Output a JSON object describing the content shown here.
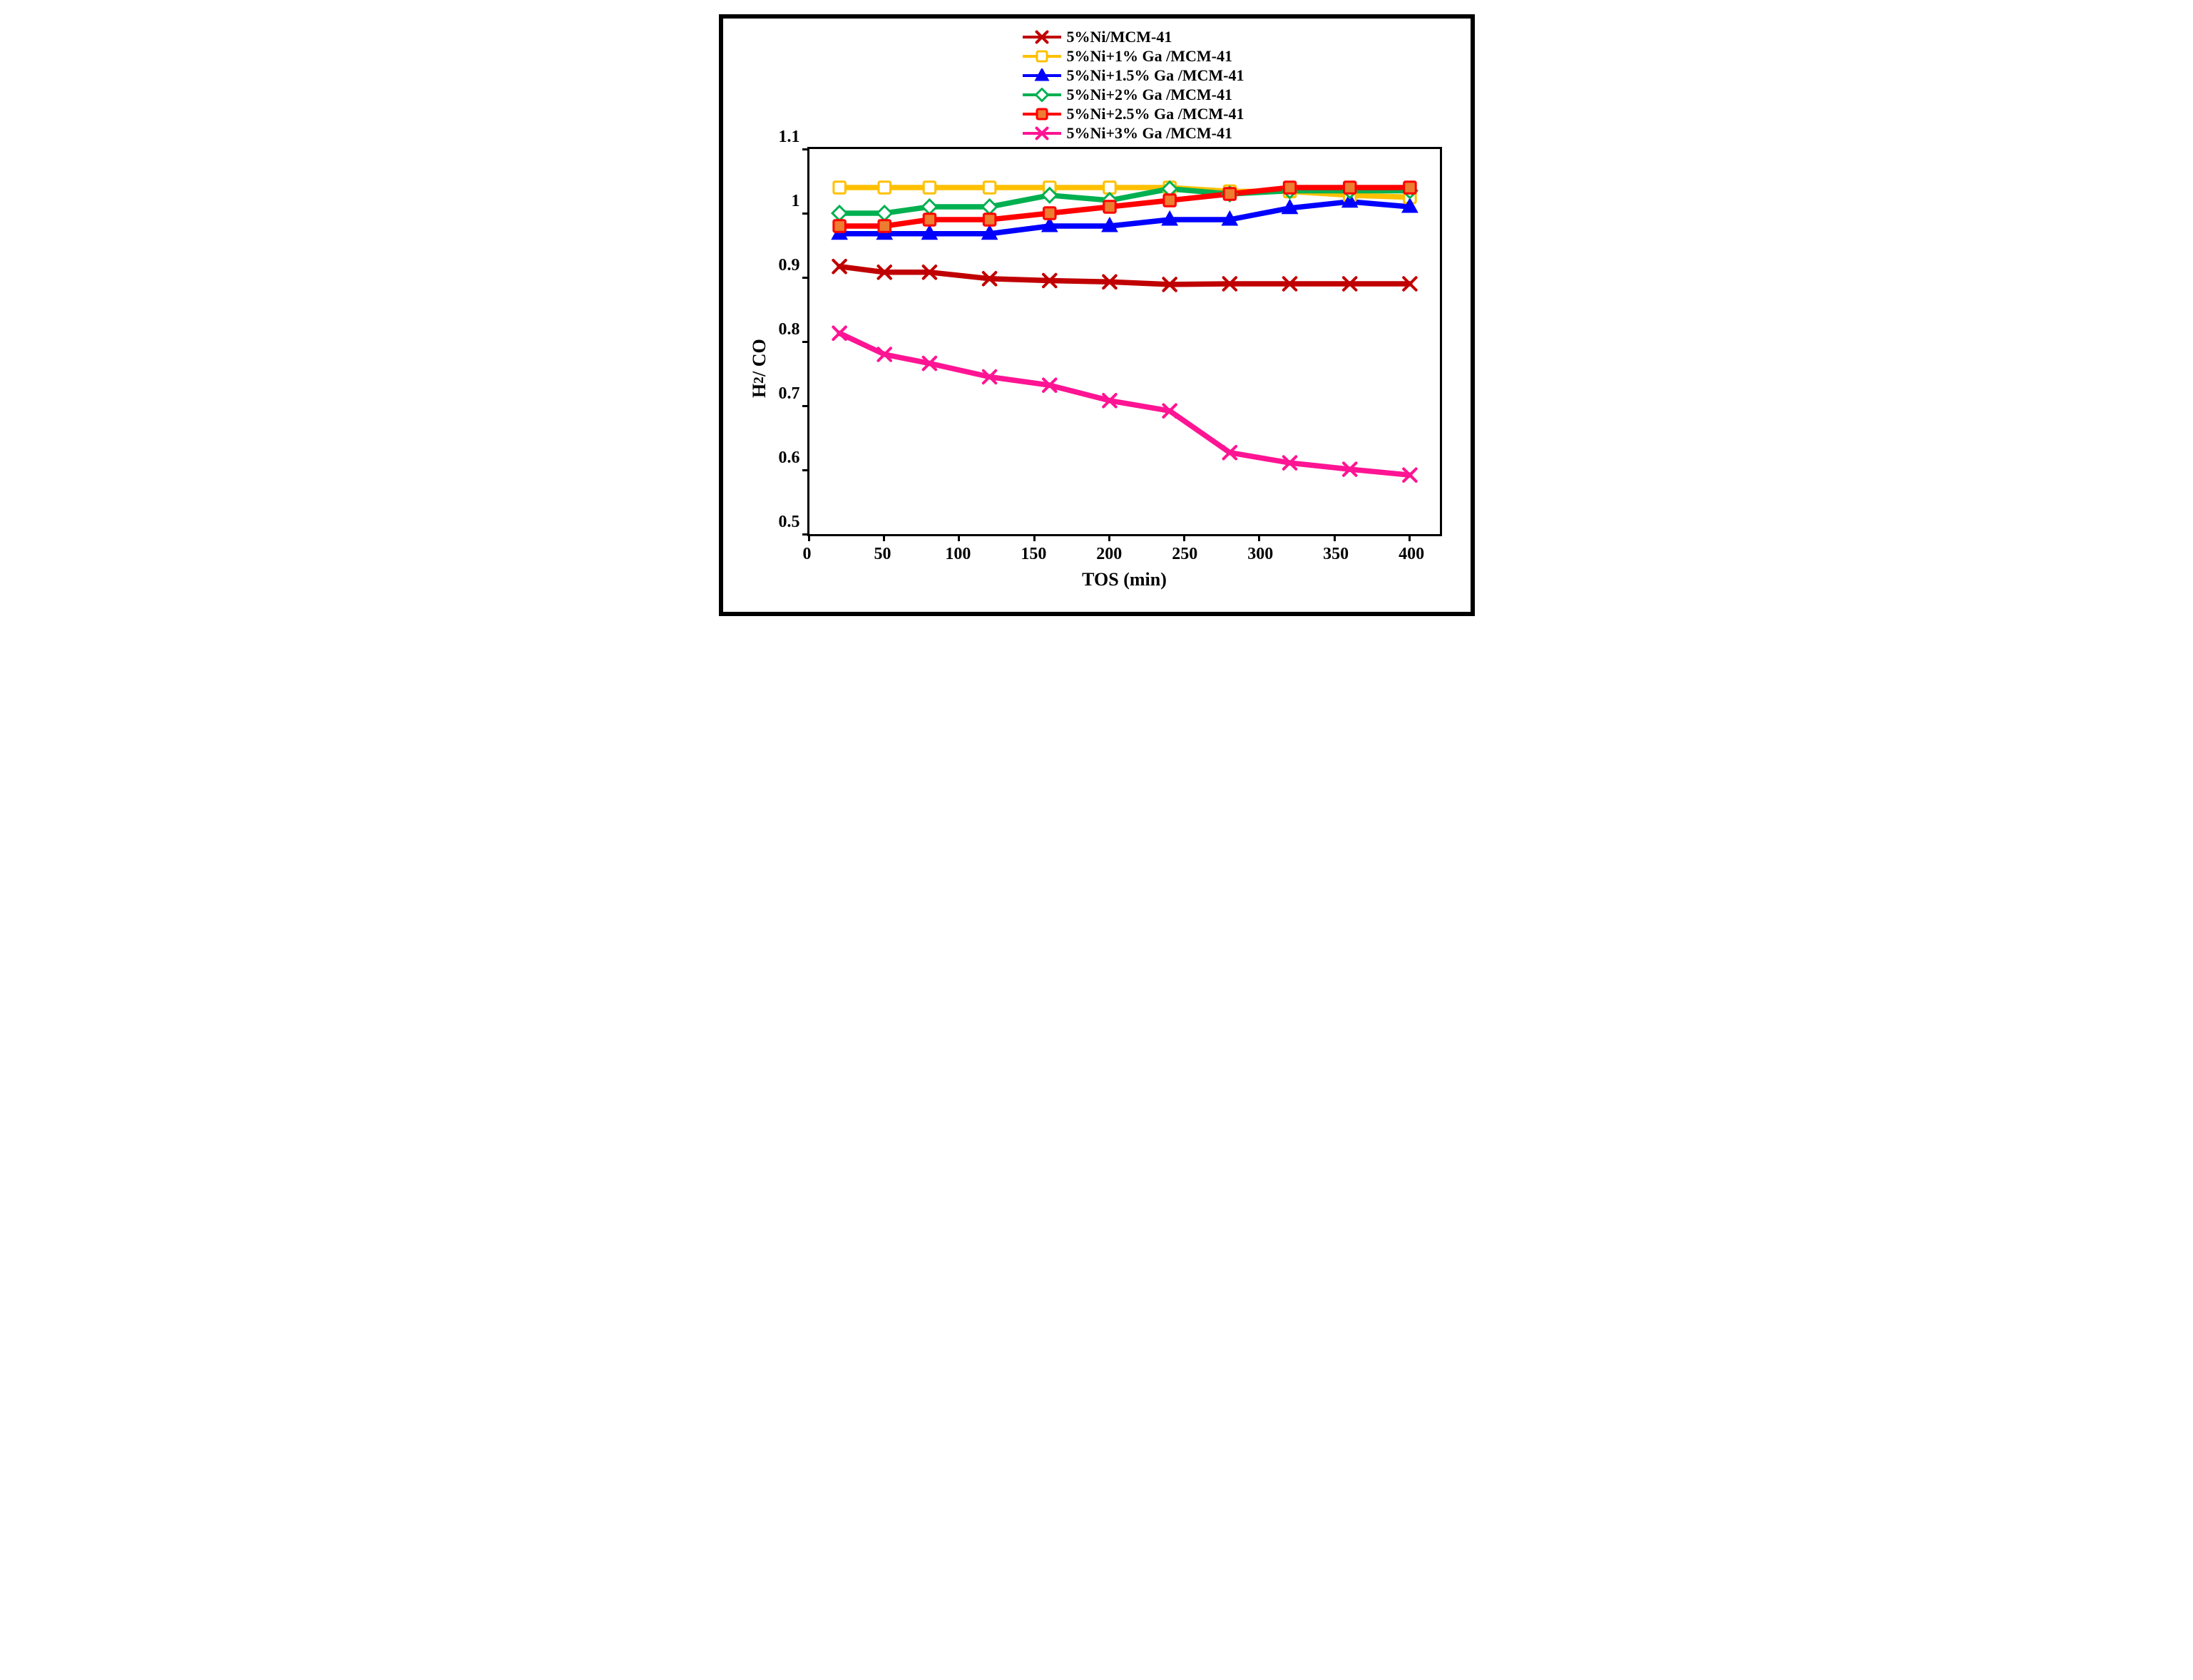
{
  "chart": {
    "type": "line",
    "background_color": "#ffffff",
    "frame_border_color": "#000000",
    "frame_border_width": 6,
    "plot_border_width": 3,
    "xlabel": "TOS (min)",
    "ylabel_html": "H<sub>2</sub> / CO",
    "label_fontsize": 26,
    "tick_fontsize": 24,
    "legend_fontsize": 22,
    "line_width": 5,
    "marker_size": 14,
    "xlim": [
      0,
      420
    ],
    "ylim": [
      0.5,
      1.1
    ],
    "xticks": [
      0,
      50,
      100,
      150,
      200,
      250,
      300,
      350,
      400
    ],
    "yticks": [
      0.5,
      0.6,
      0.7,
      0.8,
      0.9,
      1,
      1.1
    ],
    "x": [
      20,
      50,
      80,
      120,
      160,
      200,
      240,
      280,
      320,
      360,
      400
    ],
    "series": [
      {
        "label": "5%Ni/MCM-41",
        "color": "#c00000",
        "marker": "cross",
        "marker_fill": "#c00000",
        "marker_stroke": "#c00000",
        "y": [
          0.917,
          0.908,
          0.908,
          0.898,
          0.895,
          0.893,
          0.889,
          0.89,
          0.89,
          0.89,
          0.89
        ]
      },
      {
        "label": "5%Ni+1% Ga /MCM-41",
        "color": "#ffc000",
        "marker": "square",
        "marker_fill": "#ffffff",
        "marker_stroke": "#ffc000",
        "y": [
          1.04,
          1.04,
          1.04,
          1.04,
          1.04,
          1.04,
          1.04,
          1.034,
          1.034,
          1.028,
          1.025
        ]
      },
      {
        "label": "5%Ni+1.5% Ga /MCM-41",
        "color": "#0000ff",
        "marker": "triangle",
        "marker_fill": "#0000ff",
        "marker_stroke": "#0000ff",
        "y": [
          0.968,
          0.968,
          0.968,
          0.968,
          0.98,
          0.98,
          0.99,
          0.99,
          1.008,
          1.018,
          1.01
        ]
      },
      {
        "label": "5%Ni+2% Ga /MCM-41",
        "color": "#00b050",
        "marker": "diamond",
        "marker_fill": "#ffffff",
        "marker_stroke": "#00b050",
        "y": [
          1.0,
          1.0,
          1.01,
          1.01,
          1.028,
          1.02,
          1.038,
          1.03,
          1.035,
          1.035,
          1.035
        ]
      },
      {
        "label": "5%Ni+2.5% Ga /MCM-41",
        "color": "#ff0000",
        "marker": "square",
        "marker_fill": "#ed7d31",
        "marker_stroke": "#ff0000",
        "y": [
          0.98,
          0.98,
          0.99,
          0.99,
          1.0,
          1.01,
          1.02,
          1.03,
          1.04,
          1.04,
          1.04
        ]
      },
      {
        "label": "5%Ni+3% Ga /MCM-41",
        "color": "#ff1493",
        "marker": "cross",
        "marker_fill": "#ff1493",
        "marker_stroke": "#ff1493",
        "y": [
          0.813,
          0.78,
          0.766,
          0.745,
          0.732,
          0.708,
          0.692,
          0.627,
          0.611,
          0.601,
          0.592
        ]
      }
    ]
  }
}
